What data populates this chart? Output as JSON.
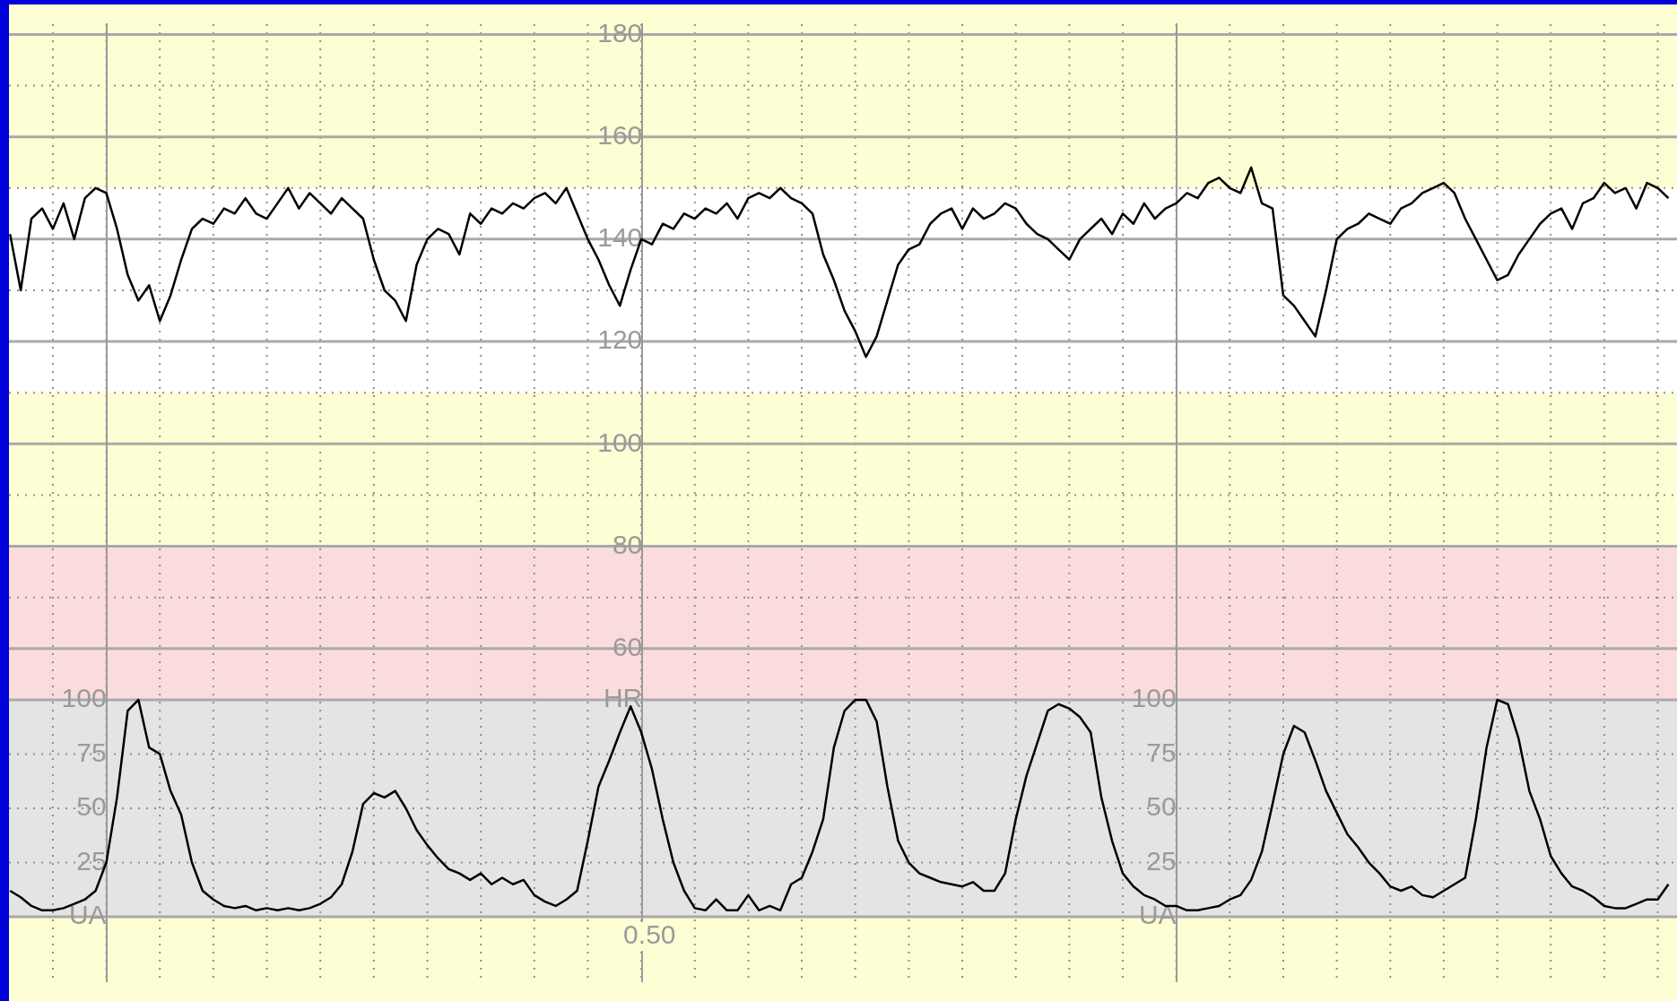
{
  "chart_data": {
    "type": "line",
    "categories": [
      null,
      null,
      null,
      null,
      null,
      null,
      null,
      null,
      null,
      null,
      null,
      null,
      null,
      null,
      null,
      null,
      null,
      null,
      null,
      null,
      null,
      null,
      null,
      null,
      null,
      null,
      null,
      null,
      null,
      null,
      null,
      null,
      null,
      null,
      null,
      null,
      null,
      null,
      null,
      null,
      null,
      null,
      null,
      null,
      null,
      null,
      null,
      null,
      null,
      null,
      null,
      null,
      null,
      null,
      null,
      null,
      null,
      null,
      null,
      null,
      null,
      null,
      null,
      null,
      null,
      null,
      null,
      null,
      null,
      null,
      null,
      null,
      null,
      null,
      null,
      null,
      null,
      null,
      null,
      null,
      null,
      null,
      null,
      null,
      null,
      null,
      null,
      null,
      null,
      null,
      null,
      null,
      null,
      null,
      null,
      null,
      null,
      null,
      null,
      null,
      null,
      null,
      null,
      null,
      null,
      null,
      null,
      null,
      null,
      null,
      null,
      null,
      null,
      null,
      null,
      null,
      null,
      null,
      null,
      null,
      null,
      null,
      null,
      null,
      null,
      null,
      null,
      null,
      null,
      null,
      null,
      null,
      null,
      null,
      null,
      null,
      null,
      null,
      null,
      null,
      null,
      null,
      null,
      null,
      null,
      null,
      null,
      null,
      null,
      null,
      null,
      null,
      null,
      null,
      null,
      null
    ],
    "series": [
      {
        "color": "#000000",
        "values": [
          141,
          130,
          144,
          146,
          142,
          147,
          140,
          148,
          150,
          149,
          142,
          133,
          128,
          131,
          124,
          129,
          136,
          142,
          144,
          143,
          146,
          145,
          148,
          145,
          144,
          147,
          150,
          146,
          149,
          147,
          145,
          148,
          146,
          144,
          136,
          130,
          128,
          124,
          135,
          140,
          142,
          141,
          137,
          145,
          143,
          146,
          145,
          147,
          146,
          148,
          149,
          147,
          150,
          145,
          140,
          136,
          131,
          127,
          134,
          140,
          139,
          143,
          142,
          145,
          144,
          146,
          145,
          147,
          144,
          148,
          149,
          148,
          150,
          148,
          147,
          145,
          137,
          132,
          126,
          122,
          117,
          121,
          128,
          135,
          138,
          139,
          143,
          145,
          146,
          142,
          146,
          144,
          145,
          147,
          146,
          143,
          141,
          140,
          138,
          136,
          140,
          142,
          144,
          141,
          145,
          143,
          147,
          144,
          146,
          147,
          149,
          148,
          151,
          152,
          150,
          149,
          154,
          147,
          146,
          129,
          127,
          124,
          121,
          130,
          140,
          142,
          143,
          145,
          144,
          143,
          146,
          147,
          149,
          150,
          151,
          149,
          144,
          140,
          136,
          132,
          133,
          137,
          140,
          143,
          145,
          146,
          142,
          147,
          148,
          151,
          149,
          150,
          146,
          151,
          150,
          148
        ]
      },
      {
        "color": "#000000",
        "axis": "y2",
        "values": [
          12,
          9,
          5,
          3,
          3,
          4,
          6,
          8,
          12,
          25,
          55,
          95,
          100,
          78,
          75,
          58,
          47,
          25,
          12,
          8,
          5,
          4,
          5,
          3,
          4,
          3,
          4,
          3,
          4,
          6,
          9,
          15,
          30,
          52,
          57,
          55,
          58,
          50,
          40,
          33,
          27,
          22,
          20,
          17,
          20,
          15,
          18,
          15,
          17,
          10,
          7,
          5,
          8,
          12,
          35,
          60,
          72,
          85,
          97,
          85,
          68,
          45,
          25,
          12,
          4,
          3,
          8,
          3,
          3,
          10,
          3,
          5,
          3,
          15,
          18,
          30,
          45,
          78,
          95,
          100,
          100,
          90,
          60,
          35,
          25,
          20,
          18,
          16,
          15,
          14,
          16,
          12,
          12,
          20,
          45,
          65,
          80,
          95,
          98,
          96,
          92,
          85,
          55,
          35,
          20,
          14,
          10,
          8,
          5,
          5,
          3,
          3,
          4,
          5,
          8,
          10,
          17,
          30,
          52,
          75,
          88,
          85,
          72,
          58,
          48,
          38,
          32,
          25,
          20,
          14,
          12,
          14,
          10,
          9,
          12,
          15,
          18,
          45,
          78,
          100,
          98,
          82,
          58,
          45,
          28,
          20,
          14,
          12,
          9,
          5,
          4,
          4,
          6,
          8,
          8,
          15
        ]
      }
    ],
    "ylim": [
      -5,
      182
    ],
    "yticks": [
      {
        "value": 50,
        "label": "HR"
      },
      60,
      80,
      100,
      120,
      140,
      160,
      180
    ],
    "y2lim": [
      -29.7,
      411.3
    ],
    "y2ticks": [
      {
        "value": 0,
        "label": "UA"
      },
      25,
      50,
      75,
      100
    ],
    "y3lim": [
      -29.7,
      411.3
    ],
    "y3ticks": [
      {
        "value": 0,
        "label": "UA"
      },
      25,
      50,
      75,
      100
    ],
    "bands": [
      {
        "axis": "y",
        "from": 110,
        "to": 150,
        "color": "#ffffff"
      },
      {
        "axis": "y",
        "from": 50,
        "to": 80,
        "color": "#fbdcdc"
      },
      {
        "axis": "y2",
        "from": 0,
        "to": 100,
        "color": "#e4e4e4"
      }
    ],
    "annotations": [
      "0.50"
    ],
    "grid": true,
    "line_style": "solid"
  }
}
